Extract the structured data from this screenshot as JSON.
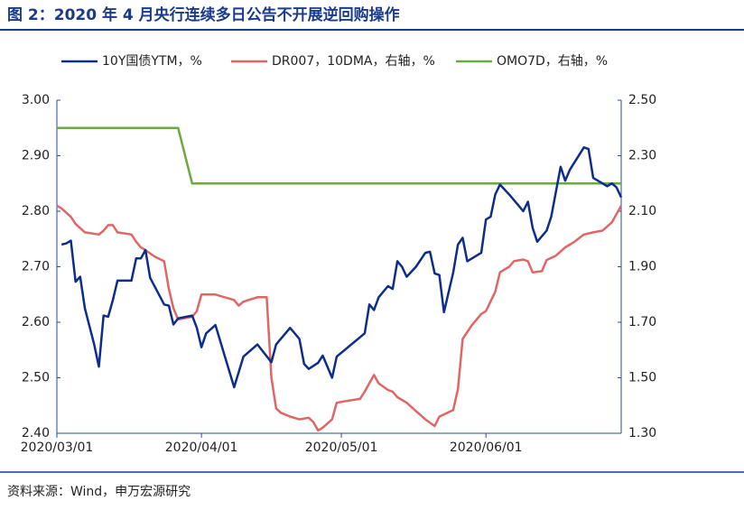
{
  "chart_data": {
    "type": "line",
    "title": "图 2：2020 年 4 月央行连续多日公告不开展逆回购操作",
    "source": "资料来源：Wind，申万宏源研究",
    "xlim": [
      "2020/03/01",
      "2020/06/30"
    ],
    "xticks": [
      "2020/03/01",
      "2020/04/01",
      "2020/05/01",
      "2020/06/01"
    ],
    "ylim": [
      2.4,
      3.0
    ],
    "yticks": [
      {
        "value": 2.4,
        "label": "2.40"
      },
      {
        "value": 2.5,
        "label": "2.50"
      },
      {
        "value": 2.6,
        "label": "2.60"
      },
      {
        "value": 2.7,
        "label": "2.70"
      },
      {
        "value": 2.8,
        "label": "2.80"
      },
      {
        "value": 2.9,
        "label": "2.90"
      },
      {
        "value": 3,
        "label": "3.00"
      }
    ],
    "y2lim": [
      1.3,
      2.5
    ],
    "y2ticks": [
      {
        "value": 1.3,
        "label": "1.30"
      },
      {
        "value": 1.5,
        "label": "1.50"
      },
      {
        "value": 1.7,
        "label": "1.70"
      },
      {
        "value": 1.9,
        "label": "1.90"
      },
      {
        "value": 2.1,
        "label": "2.10"
      },
      {
        "value": 2.3,
        "label": "2.30"
      },
      {
        "value": 2.5,
        "label": "2.50"
      }
    ],
    "grid": false,
    "legend": "top",
    "series": [
      {
        "name": "10Y国债YTM，%",
        "color": "#0d2d8c",
        "x": [
          "2020/03/02",
          "2020/03/03",
          "2020/03/04",
          "2020/03/05",
          "2020/03/06",
          "2020/03/07",
          "2020/03/09",
          "2020/03/10",
          "2020/03/11",
          "2020/03/12",
          "2020/03/13",
          "2020/03/14",
          "2020/03/16",
          "2020/03/17",
          "2020/03/18",
          "2020/03/19",
          "2020/03/20",
          "2020/03/21",
          "2020/03/24",
          "2020/03/25",
          "2020/03/26",
          "2020/03/27",
          "2020/03/30",
          "2020/03/31",
          "2020/04/01",
          "2020/04/02",
          "2020/04/04",
          "2020/04/08",
          "2020/04/10",
          "2020/04/13",
          "2020/04/16",
          "2020/04/17",
          "2020/04/20",
          "2020/04/22",
          "2020/04/23",
          "2020/04/24",
          "2020/04/26",
          "2020/04/27",
          "2020/04/29",
          "2020/04/30",
          "2020/05/06",
          "2020/05/07",
          "2020/05/08",
          "2020/05/09",
          "2020/05/11",
          "2020/05/12",
          "2020/05/13",
          "2020/05/14",
          "2020/05/15",
          "2020/05/17",
          "2020/05/19",
          "2020/05/20",
          "2020/05/21",
          "2020/05/22",
          "2020/05/23",
          "2020/05/25",
          "2020/05/26",
          "2020/05/27",
          "2020/05/28",
          "2020/05/31",
          "2020/06/01",
          "2020/06/02",
          "2020/06/03",
          "2020/06/04",
          "2020/06/06",
          "2020/06/08",
          "2020/06/09",
          "2020/06/10",
          "2020/06/11",
          "2020/06/12",
          "2020/06/14",
          "2020/06/15",
          "2020/06/17",
          "2020/06/18",
          "2020/06/19",
          "2020/06/22",
          "2020/06/23",
          "2020/06/24",
          "2020/06/26",
          "2020/06/27",
          "2020/06/28",
          "2020/06/29",
          "2020/06/30"
        ],
        "values": [
          2.74,
          2.742,
          2.747,
          2.673,
          2.682,
          2.625,
          2.56,
          2.52,
          2.612,
          2.61,
          2.64,
          2.675,
          2.675,
          2.675,
          2.715,
          2.715,
          2.73,
          2.68,
          2.632,
          2.63,
          2.596,
          2.607,
          2.612,
          2.59,
          2.555,
          2.58,
          2.595,
          2.483,
          2.538,
          2.56,
          2.528,
          2.56,
          2.59,
          2.57,
          2.525,
          2.516,
          2.527,
          2.54,
          2.5,
          2.538,
          2.58,
          2.632,
          2.622,
          2.645,
          2.665,
          2.66,
          2.71,
          2.7,
          2.682,
          2.7,
          2.725,
          2.727,
          2.688,
          2.685,
          2.618,
          2.69,
          2.74,
          2.752,
          2.71,
          2.725,
          2.785,
          2.79,
          2.83,
          2.848,
          2.83,
          2.81,
          2.8,
          2.817,
          2.77,
          2.745,
          2.765,
          2.79,
          2.88,
          2.855,
          2.875,
          2.915,
          2.912,
          2.86,
          2.85,
          2.845,
          2.85,
          2.843,
          2.825
        ]
      },
      {
        "name": "DR007，10DMA，右轴，%",
        "color": "#e06666",
        "axis": "y2",
        "x": [
          "2020/03/01",
          "2020/03/02",
          "2020/03/04",
          "2020/03/05",
          "2020/03/07",
          "2020/03/10",
          "2020/03/11",
          "2020/03/12",
          "2020/03/13",
          "2020/03/14",
          "2020/03/17",
          "2020/03/18",
          "2020/03/19",
          "2020/03/20",
          "2020/03/22",
          "2020/03/24",
          "2020/03/25",
          "2020/03/26",
          "2020/03/27",
          "2020/03/30",
          "2020/03/31",
          "2020/04/01",
          "2020/04/04",
          "2020/04/08",
          "2020/04/09",
          "2020/04/10",
          "2020/04/13",
          "2020/04/15",
          "2020/04/16",
          "2020/04/17",
          "2020/04/18",
          "2020/04/20",
          "2020/04/22",
          "2020/04/24",
          "2020/04/25",
          "2020/04/26",
          "2020/04/27",
          "2020/04/29",
          "2020/04/30",
          "2020/05/02",
          "2020/05/05",
          "2020/05/06",
          "2020/05/08",
          "2020/05/09",
          "2020/05/11",
          "2020/05/12",
          "2020/05/13",
          "2020/05/15",
          "2020/05/17",
          "2020/05/19",
          "2020/05/21",
          "2020/05/22",
          "2020/05/25",
          "2020/05/26",
          "2020/05/27",
          "2020/05/29",
          "2020/05/30",
          "2020/05/31",
          "2020/06/01",
          "2020/06/03",
          "2020/06/04",
          "2020/06/06",
          "2020/06/07",
          "2020/06/09",
          "2020/06/10",
          "2020/06/11",
          "2020/06/13",
          "2020/06/14",
          "2020/06/16",
          "2020/06/18",
          "2020/06/20",
          "2020/06/22",
          "2020/06/24",
          "2020/06/26",
          "2020/06/28",
          "2020/06/30"
        ],
        "values": [
          2.12,
          2.11,
          2.08,
          2.054,
          2.024,
          2.016,
          2.03,
          2.05,
          2.05,
          2.024,
          2.016,
          1.99,
          1.97,
          1.96,
          1.936,
          1.92,
          1.82,
          1.75,
          1.71,
          1.72,
          1.74,
          1.8,
          1.8,
          1.78,
          1.76,
          1.774,
          1.79,
          1.79,
          1.5,
          1.39,
          1.374,
          1.36,
          1.35,
          1.356,
          1.34,
          1.31,
          1.32,
          1.35,
          1.41,
          1.416,
          1.424,
          1.45,
          1.51,
          1.48,
          1.456,
          1.45,
          1.43,
          1.41,
          1.38,
          1.35,
          1.326,
          1.36,
          1.384,
          1.46,
          1.64,
          1.69,
          1.71,
          1.73,
          1.74,
          1.81,
          1.88,
          1.9,
          1.92,
          1.926,
          1.92,
          1.88,
          1.884,
          1.924,
          1.94,
          1.97,
          1.99,
          2.016,
          2.024,
          2.03,
          2.06,
          2.12
        ]
      },
      {
        "name": "OMO7D，右轴，%",
        "color": "#6aab3c",
        "axis": "y2",
        "x": [
          "2020/03/01",
          "2020/03/27",
          "2020/03/30",
          "2020/06/30"
        ],
        "values": [
          2.4,
          2.4,
          2.2,
          2.2
        ]
      }
    ]
  }
}
